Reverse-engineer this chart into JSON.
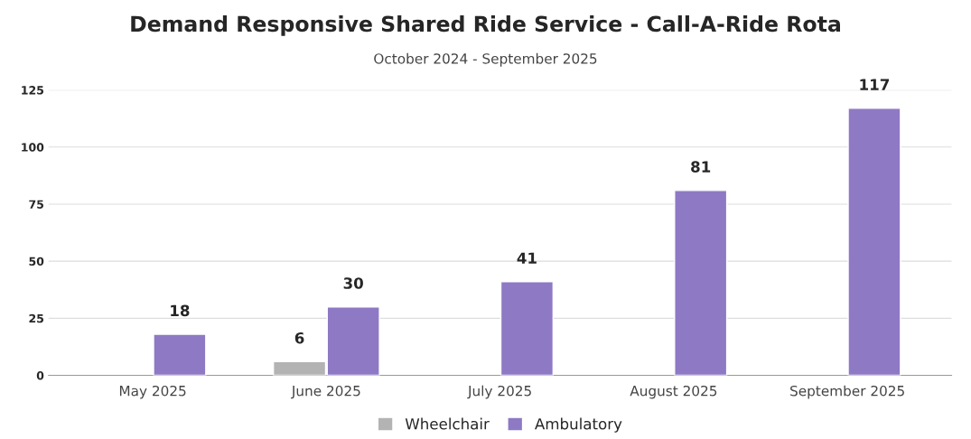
{
  "chart_data": {
    "type": "bar",
    "title": "Demand Responsive Shared Ride Service - Call-A-Ride Rota",
    "subtitle": "October 2024 - September 2025",
    "categories": [
      "May 2025",
      "June 2025",
      "July 2025",
      "August 2025",
      "September 2025"
    ],
    "series": [
      {
        "name": "Wheelchair",
        "color": "#b3b3b3",
        "values": [
          null,
          6,
          null,
          null,
          null
        ]
      },
      {
        "name": "Ambulatory",
        "color": "#8e79c4",
        "values": [
          18,
          30,
          41,
          81,
          117
        ]
      }
    ],
    "ylim": [
      0,
      125
    ],
    "yticks": [
      0,
      25,
      50,
      75,
      100,
      125
    ],
    "grid": "y",
    "legend": "bottom",
    "data_labels": true
  }
}
